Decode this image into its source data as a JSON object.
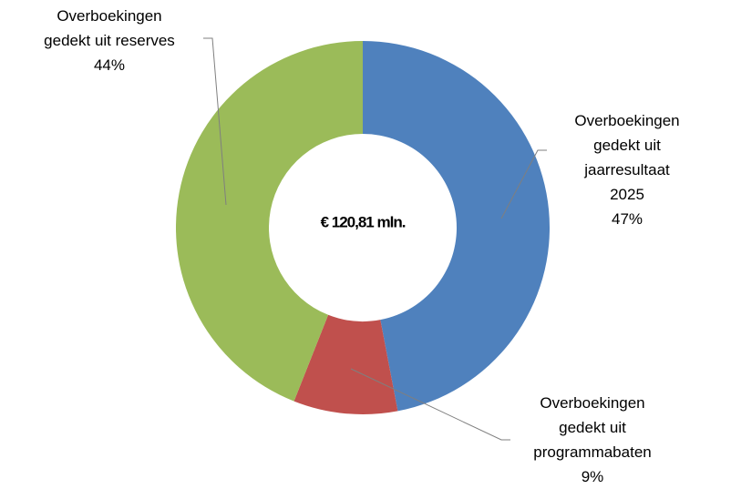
{
  "chart_data": {
    "type": "donut",
    "center_label": "€ 120,81 mln.",
    "categories": [
      "Overboekingen\ngedekt uit\njaarresultaat 2025",
      "Overboekingen\ngedekt uit\nprogrammabaten",
      "Overboekingen\ngedekt uit reserves"
    ],
    "values": [
      47,
      9,
      44
    ],
    "value_labels": [
      "47%",
      "9%",
      "44%"
    ],
    "colors": [
      "#4f81bd",
      "#c0504d",
      "#9bbb59"
    ]
  }
}
